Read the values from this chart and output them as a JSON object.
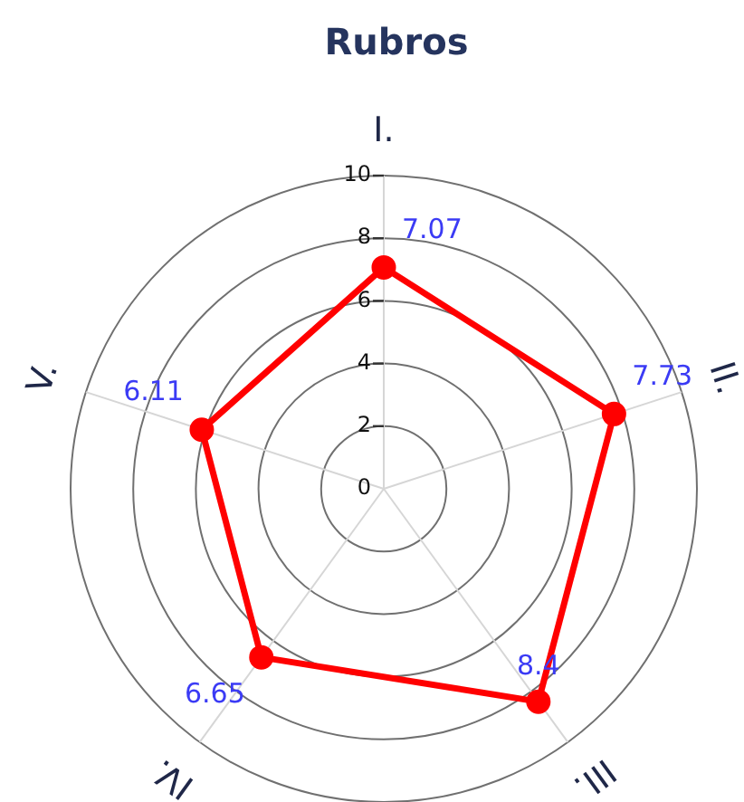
{
  "chart_data": {
    "type": "radar",
    "title": "Rubros",
    "categories": [
      "I.",
      "II.",
      "III.",
      "IV.",
      "V."
    ],
    "series": [
      {
        "color": "#ff0000",
        "values": [
          7.07,
          7.73,
          8.4,
          6.65,
          6.11
        ]
      }
    ],
    "ylim": [
      0,
      10
    ],
    "yticks": [
      0,
      2,
      4,
      6,
      8,
      10
    ],
    "grid": true,
    "data_labels": true,
    "marker": "circle"
  }
}
